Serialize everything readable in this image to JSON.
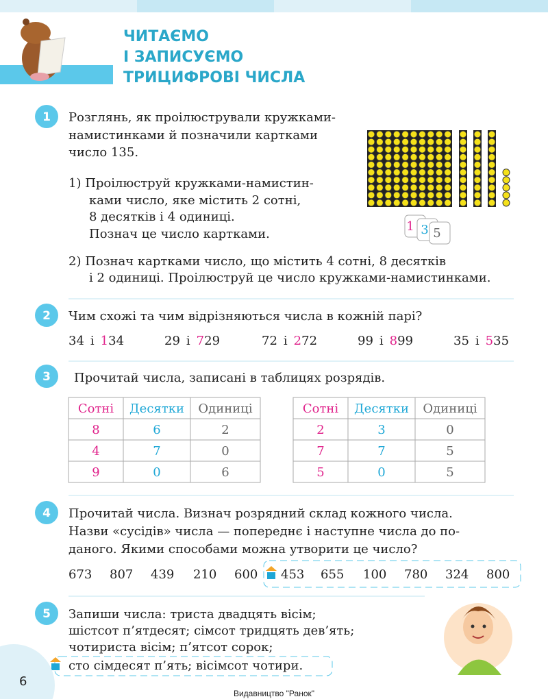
{
  "header": {
    "title_lines": [
      "ЧИТАЄМО",
      "І ЗАПИСУЄМО",
      "ТРИЦИФРОВІ ЧИСЛА"
    ]
  },
  "tasks": [
    {
      "number": "1",
      "lines": [
        "Розглянь, як проілюстрували кружками-",
        "намистинками й позначили картками",
        "число 135."
      ],
      "subtasks": [
        {
          "lines": [
            "1) Проілюструй кружками-намистин-",
            "ками число, яке містить 2 сотні,",
            "8 десятків і 4 одиниці.",
            "Познач це число картками."
          ]
        },
        {
          "lines": [
            "2) Познач картками число, що містить 4 сотні, 8 десятків",
            "і 2 одиниці. Проілюструй це число кружками-намистинками."
          ]
        }
      ],
      "cards": [
        "1",
        "3",
        "5"
      ]
    },
    {
      "number": "2",
      "text": "Чим схожі та чим відрізняються числа в кожній парі?",
      "pairs": [
        {
          "left": "34",
          "conj": "і",
          "highlight": "1",
          "rest": "34"
        },
        {
          "left": "29",
          "conj": "і",
          "highlight": "7",
          "rest": "29"
        },
        {
          "left": "72",
          "conj": "і",
          "highlight": "2",
          "rest": "72"
        },
        {
          "left": "99",
          "conj": "і",
          "highlight": "8",
          "rest": "99"
        },
        {
          "left": "35",
          "conj": "і",
          "highlight": "5",
          "rest": "35"
        }
      ]
    },
    {
      "number": "3",
      "text": "Прочитай числа, записані в таблицях розрядів.",
      "tables": [
        {
          "headers": [
            "Сотні",
            "Десятки",
            "Одиниці"
          ],
          "rows": [
            [
              8,
              6,
              2
            ],
            [
              4,
              7,
              0
            ],
            [
              9,
              0,
              6
            ]
          ]
        },
        {
          "headers": [
            "Сотні",
            "Десятки",
            "Одиниці"
          ],
          "rows": [
            [
              2,
              3,
              0
            ],
            [
              7,
              7,
              5
            ],
            [
              5,
              0,
              5
            ]
          ]
        }
      ]
    },
    {
      "number": "4",
      "lines": [
        "Прочитай числа. Визнач розрядний склад кожного числа.",
        "Назви «сусідів» числа — попереднє і наступне числа до по-",
        "даного. Якими способами можна утворити це число?"
      ],
      "numbers": [
        673,
        807,
        439,
        210,
        600,
        453,
        655,
        100,
        780,
        324,
        800
      ]
    },
    {
      "number": "5",
      "lines": [
        "Запиши числа: триста двадцять вісім;",
        "шістсот п’ятдесят; сімсот тридцять дев’ять;",
        "чотириста вісім; п’ятсот сорок;",
        "сто сімдесят п’ять; вісімсот чотири."
      ]
    }
  ],
  "page_number": "6",
  "footer": "Видавництво \"Ранок\""
}
